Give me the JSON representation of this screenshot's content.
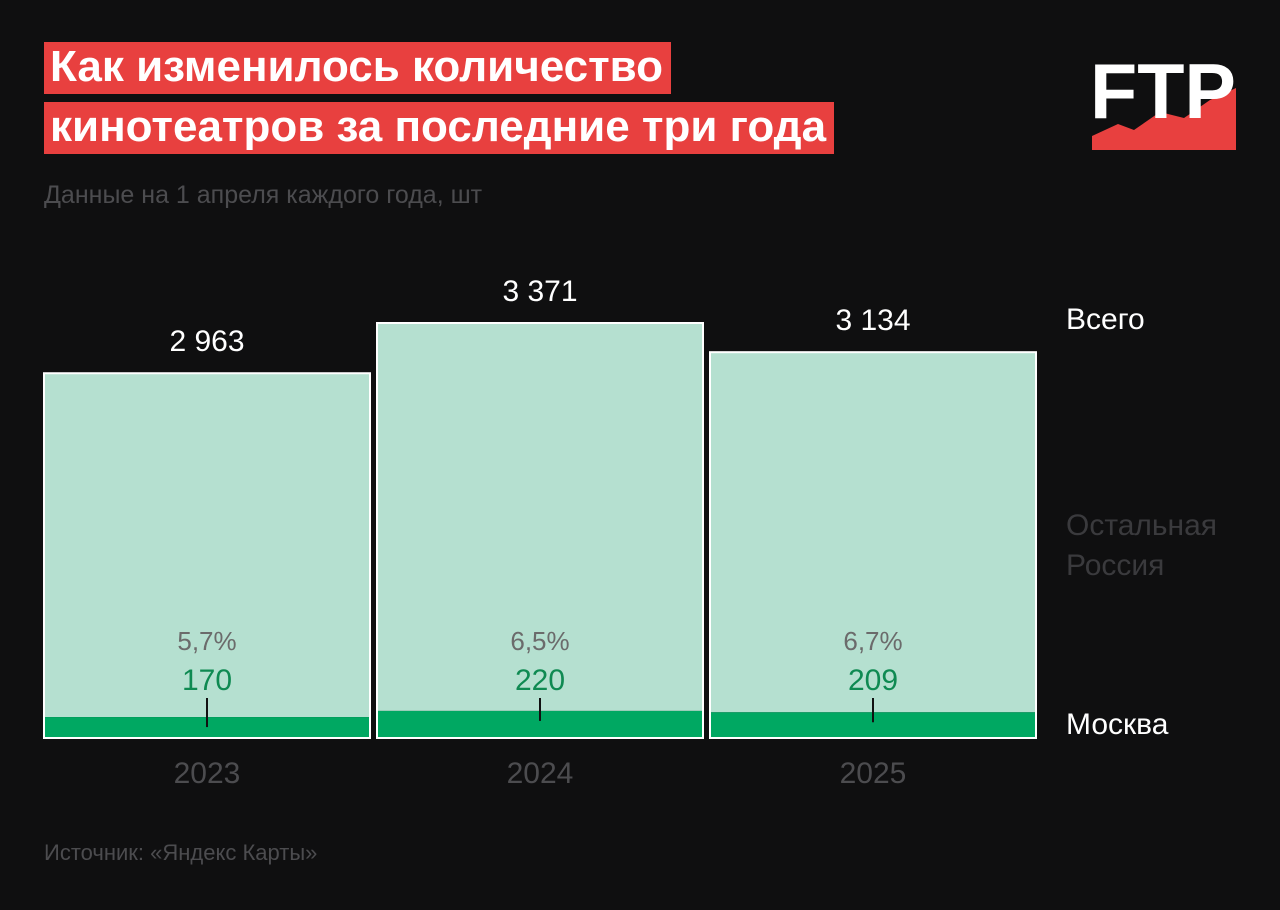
{
  "title": {
    "line1": "Как изменилось количество",
    "line2": "кинотеатров за последние три года"
  },
  "subtitle": "Данные на 1 апреля каждого года, шт",
  "source": "Источник: «Яндекс Карты»",
  "logo": {
    "text": "FTP"
  },
  "colors": {
    "background": "#0f0f10",
    "title_bg": "#e8403f",
    "rest_fill": "#b5e0d0",
    "moscow_fill": "#00a862",
    "moscow_text": "#0f8a52",
    "pct_text": "#6b6b6b",
    "muted_text": "#4c4c4f",
    "white": "#ffffff"
  },
  "chart_data": {
    "type": "bar",
    "stacked": true,
    "categories": [
      "2023",
      "2024",
      "2025"
    ],
    "series": [
      {
        "name": "Москва",
        "values": [
          170,
          220,
          209
        ]
      },
      {
        "name": "Остальная Россия",
        "values": [
          2793,
          3151,
          2925
        ]
      }
    ],
    "totals": [
      "2 963",
      "3 371",
      "3 134"
    ],
    "total_values": [
      2963,
      3371,
      3134
    ],
    "moscow_labels": [
      "170",
      "220",
      "209"
    ],
    "moscow_share": [
      "5,7%",
      "6,5%",
      "6,7%"
    ],
    "legend": {
      "total": "Всего",
      "rest_line1": "Остальная",
      "rest_line2": "Россия",
      "moscow": "Москва"
    },
    "ylim": [
      0,
      3371
    ],
    "title": "Как изменилось количество кинотеатров за последние три года",
    "xlabel": "",
    "ylabel": ""
  }
}
